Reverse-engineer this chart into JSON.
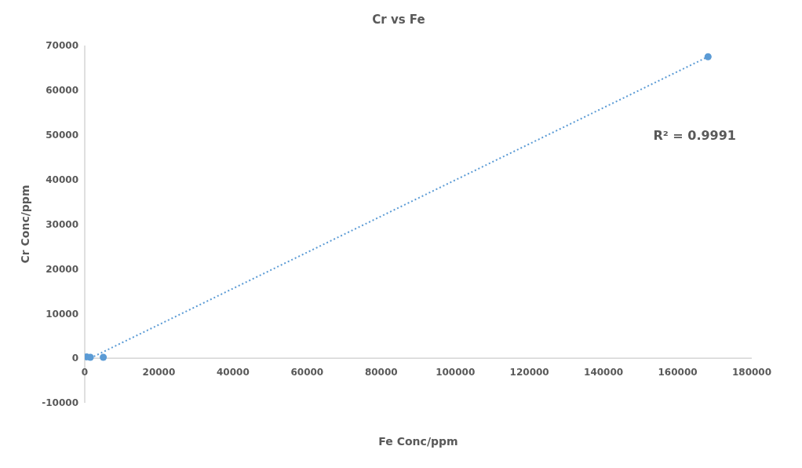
{
  "chart_data": {
    "type": "scatter",
    "title": "Cr vs Fe",
    "xlabel": "Fe Conc/ppm",
    "ylabel": "Cr Conc/ppm",
    "series": [
      {
        "color": "#5b9bd5",
        "x": [
          500,
          1500,
          5000,
          168200
        ],
        "values": [
          300,
          200,
          200,
          67500
        ]
      },
      {
        "type": "line",
        "color": "#5b9bd5",
        "x": [
          1500,
          168200
        ],
        "values": [
          0,
          67500
        ],
        "line_style": "dotted",
        "marker": "none"
      }
    ],
    "marker": "circle",
    "xlim": [
      0,
      180000
    ],
    "xticks": [
      0,
      20000,
      40000,
      60000,
      80000,
      100000,
      120000,
      140000,
      160000,
      180000
    ],
    "ylim": [
      -10000,
      70000
    ],
    "yticks": [
      -10000,
      0,
      10000,
      20000,
      30000,
      40000,
      50000,
      60000,
      70000
    ],
    "annotations": [
      "R² = 0.9991"
    ]
  }
}
